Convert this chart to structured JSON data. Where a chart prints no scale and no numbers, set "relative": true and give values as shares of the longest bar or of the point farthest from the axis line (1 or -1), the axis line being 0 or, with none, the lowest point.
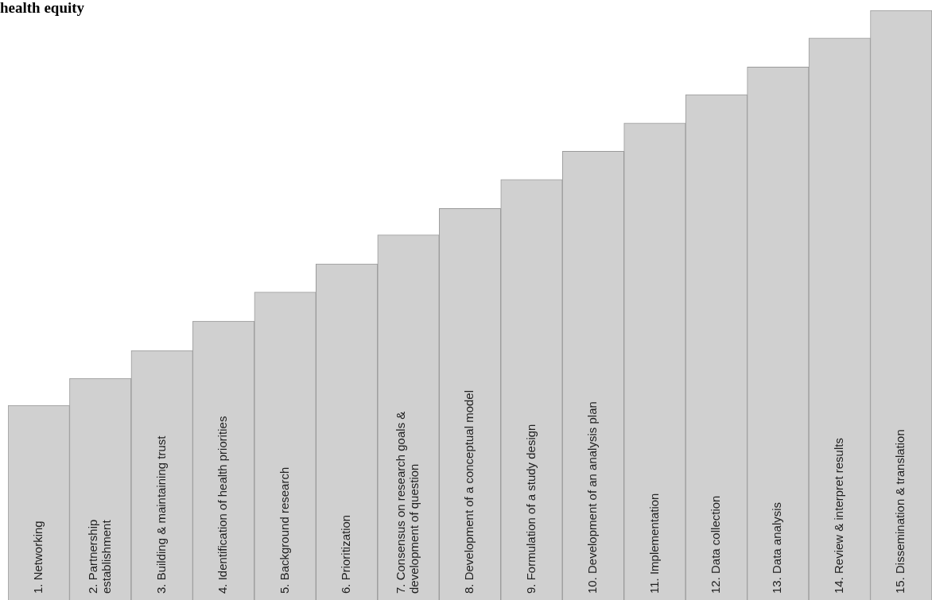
{
  "chart_data": {
    "type": "bar",
    "title": "health equity",
    "relative": true,
    "color": "#d0d0d0",
    "categories": [
      "1. Networking",
      "2. Partnership\nestablishment",
      "3. Building & maintaining trust",
      "4. Identification of health priorities",
      "5. Background research",
      "6. Prioritization",
      "7. Consensus on research goals &\ndevelopment of question",
      "8. Development of a conceptual model",
      "9. Formulation of a study design",
      "10. Development of an analysis plan",
      "11. Implementation",
      "12. Data collection",
      "13. Data analysis",
      "14. Review & interpret results",
      "15. Dissemination & translation"
    ],
    "values": [
      0.33,
      0.376,
      0.423,
      0.473,
      0.522,
      0.57,
      0.619,
      0.664,
      0.713,
      0.761,
      0.809,
      0.857,
      0.904,
      0.953,
      1
    ]
  }
}
